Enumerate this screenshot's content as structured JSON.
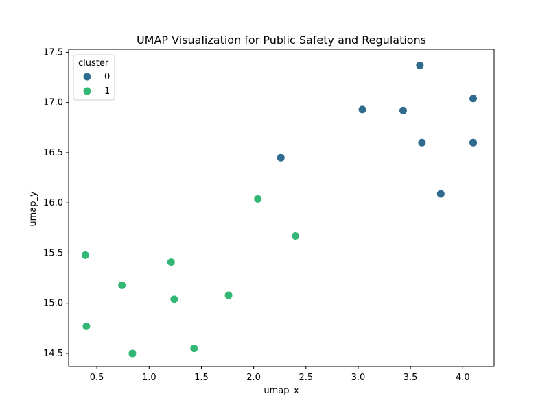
{
  "chart_data": {
    "type": "scatter",
    "title": "UMAP Visualization for Public Safety and Regulations",
    "xlabel": "umap_x",
    "ylabel": "umap_y",
    "xlim": [
      0.23,
      4.3
    ],
    "ylim": [
      14.37,
      17.53
    ],
    "xticks": [
      "0.5",
      "1.0",
      "1.5",
      "2.0",
      "2.5",
      "3.0",
      "3.5",
      "4.0"
    ],
    "yticks": [
      "14.5",
      "15.0",
      "15.5",
      "16.0",
      "16.5",
      "17.0",
      "17.5"
    ],
    "grid": false,
    "legend": {
      "title": "cluster",
      "position": "top-left"
    },
    "series": [
      {
        "name": "0",
        "color": "#2f6b8e",
        "points": [
          {
            "x": 3.59,
            "y": 17.37
          },
          {
            "x": 4.1,
            "y": 17.04
          },
          {
            "x": 3.04,
            "y": 16.93
          },
          {
            "x": 3.43,
            "y": 16.92
          },
          {
            "x": 3.61,
            "y": 16.6
          },
          {
            "x": 4.1,
            "y": 16.6
          },
          {
            "x": 2.26,
            "y": 16.45
          },
          {
            "x": 3.79,
            "y": 16.09
          }
        ]
      },
      {
        "name": "1",
        "color": "#33b775",
        "points": [
          {
            "x": 2.04,
            "y": 16.04
          },
          {
            "x": 2.4,
            "y": 15.67
          },
          {
            "x": 0.39,
            "y": 15.48
          },
          {
            "x": 1.21,
            "y": 15.41
          },
          {
            "x": 0.74,
            "y": 15.18
          },
          {
            "x": 1.76,
            "y": 15.08
          },
          {
            "x": 1.24,
            "y": 15.04
          },
          {
            "x": 0.4,
            "y": 14.77
          },
          {
            "x": 1.43,
            "y": 14.55
          },
          {
            "x": 0.84,
            "y": 14.5
          }
        ]
      }
    ]
  }
}
